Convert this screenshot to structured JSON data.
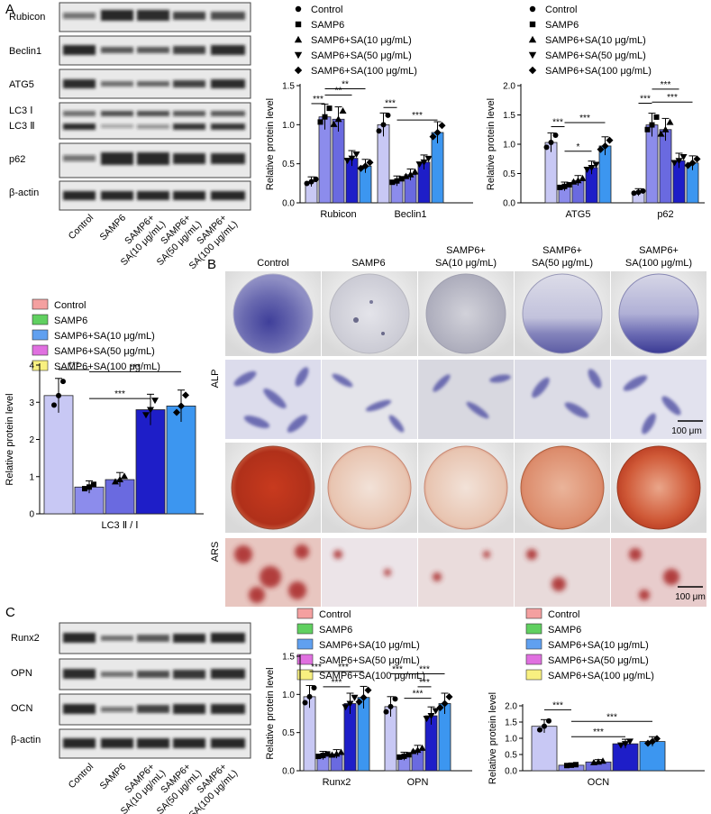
{
  "panel_labels": {
    "a": "A",
    "b": "B",
    "c": "C"
  },
  "colors": {
    "s0": "#c8c8f4",
    "s1": "#8c8cec",
    "s2": "#6a6ae0",
    "s3": "#1e1ec8",
    "s4": "#3c96f0",
    "leg_control": "#f4a0a0",
    "leg_samp6": "#60d060",
    "leg_sa10": "#60a0f0",
    "leg_sa50": "#e070e0",
    "leg_sa100": "#f8f080"
  },
  "legend_a": {
    "items": [
      {
        "label": "Control",
        "marker": "circle"
      },
      {
        "label": "SAMP6",
        "marker": "square"
      },
      {
        "label": "SAMP6+SA(10 μg/mL)",
        "marker": "triangle-up"
      },
      {
        "label": "SAMP6+SA(50 μg/mL)",
        "marker": "triangle-down"
      },
      {
        "label": "SAMP6+SA(100 μg/mL)",
        "marker": "diamond"
      }
    ]
  },
  "legend_boxes": {
    "items": [
      "Control",
      "SAMP6",
      "SAMP6+SA(10 μg/mL)",
      "SAMP6+SA(50 μg/mL)",
      "SAMP6+SA(100 μg/mL)"
    ]
  },
  "blot_a": {
    "rows": [
      "Rubicon",
      "Beclin1",
      "ATG5",
      "LC3 Ⅰ",
      "LC3 Ⅱ",
      "p62",
      "β-actin"
    ],
    "lanes": [
      "Control",
      "SAMP6",
      "SAMP6+",
      "SA(10 μg/mL)",
      "SAMP6+",
      "SA(50 μg/mL)",
      "SAMP6+",
      "SA(100 μg/mL)"
    ]
  },
  "blot_c": {
    "rows": [
      "Runx2",
      "OPN",
      "OCN",
      "β-actin"
    ],
    "lanes": [
      "Control",
      "SAMP6",
      "SAMP6+",
      "SA(10 μg/mL)",
      "SAMP6+",
      "SA(50 μg/mL)",
      "SAMP6+",
      "SA(100 μg/mL)"
    ]
  },
  "stain_panel": {
    "columns": [
      "Control",
      "SAMP6",
      "SAMP6+",
      "SA(10 μg/mL)",
      "SAMP6+",
      "SA(50 μg/mL)",
      "SAMP6+",
      "SA(100 μg/mL)"
    ],
    "rows": [
      "ALP",
      "ARS"
    ],
    "scale_bar": "100 μm"
  },
  "chart_data": [
    {
      "type": "bar",
      "ylabel": "Relative protein level",
      "ylim": [
        0,
        1.5
      ],
      "yticks": [
        "0.0",
        "0.5",
        "1.0",
        "1.5"
      ],
      "categories": [
        "Rubicon",
        "Beclin1"
      ],
      "series": [
        {
          "name": "Control",
          "values": [
            0.27,
            1.0
          ]
        },
        {
          "name": "SAMP6",
          "values": [
            1.1,
            0.28
          ]
        },
        {
          "name": "SAMP6+SA(10 μg/mL)",
          "values": [
            1.07,
            0.36
          ]
        },
        {
          "name": "SAMP6+SA(50 μg/mL)",
          "values": [
            0.57,
            0.52
          ]
        },
        {
          "name": "SAMP6+SA(100 μg/mL)",
          "values": [
            0.47,
            0.9
          ]
        }
      ],
      "significance": [
        "***",
        "**",
        "**",
        "***",
        "***"
      ]
    },
    {
      "type": "bar",
      "ylabel": "Relative protein level",
      "ylim": [
        0,
        2.0
      ],
      "yticks": [
        "0.0",
        "0.5",
        "1.0",
        "1.5",
        "2.0"
      ],
      "categories": [
        "ATG5",
        "p62"
      ],
      "series": [
        {
          "name": "Control",
          "values": [
            1.03,
            0.18
          ]
        },
        {
          "name": "SAMP6",
          "values": [
            0.28,
            1.33
          ]
        },
        {
          "name": "SAMP6+SA(10 μg/mL)",
          "values": [
            0.38,
            1.25
          ]
        },
        {
          "name": "SAMP6+SA(50 μg/mL)",
          "values": [
            0.6,
            0.72
          ]
        },
        {
          "name": "SAMP6+SA(100 μg/mL)",
          "values": [
            0.97,
            0.68
          ]
        }
      ],
      "significance": [
        "***",
        "***",
        "*",
        "***",
        "***",
        "***"
      ]
    },
    {
      "type": "bar",
      "ylabel": "Relative protein level",
      "xlabel": "LC3 Ⅱ / Ⅰ",
      "ylim": [
        0,
        4
      ],
      "yticks": [
        "0",
        "1",
        "2",
        "3",
        "4"
      ],
      "categories": [
        "LC3 Ⅱ / Ⅰ"
      ],
      "series": [
        {
          "name": "Control",
          "values": [
            3.18
          ]
        },
        {
          "name": "SAMP6",
          "values": [
            0.72
          ]
        },
        {
          "name": "SAMP6+SA(10 μg/mL)",
          "values": [
            0.92
          ]
        },
        {
          "name": "SAMP6+SA(50 μg/mL)",
          "values": [
            2.8
          ]
        },
        {
          "name": "SAMP6+SA(100 μg/mL)",
          "values": [
            2.9
          ]
        }
      ],
      "significance": [
        "***",
        "***",
        "***"
      ]
    },
    {
      "type": "bar",
      "ylabel": "Relative protein level",
      "ylim": [
        0,
        1.5
      ],
      "yticks": [
        "0.0",
        "0.5",
        "1.0",
        "1.5"
      ],
      "categories": [
        "Runx2",
        "OPN"
      ],
      "series": [
        {
          "name": "Control",
          "values": [
            0.97,
            0.84
          ]
        },
        {
          "name": "SAMP6",
          "values": [
            0.2,
            0.19
          ]
        },
        {
          "name": "SAMP6+SA(10 μg/mL)",
          "values": [
            0.22,
            0.27
          ]
        },
        {
          "name": "SAMP6+SA(50 μg/mL)",
          "values": [
            0.88,
            0.72
          ]
        },
        {
          "name": "SAMP6+SA(100 μg/mL)",
          "values": [
            0.96,
            0.88
          ]
        }
      ],
      "significance": [
        "***",
        "***",
        "***",
        "***",
        "***",
        "***",
        "***"
      ]
    },
    {
      "type": "bar",
      "ylabel": "Relative protein level",
      "ylim": [
        0,
        2.0
      ],
      "yticks": [
        "0.0",
        "0.5",
        "1.0",
        "1.5",
        "2.0"
      ],
      "categories": [
        "OCN"
      ],
      "series": [
        {
          "name": "Control",
          "values": [
            1.37
          ]
        },
        {
          "name": "SAMP6",
          "values": [
            0.17
          ]
        },
        {
          "name": "SAMP6+SA(10 μg/mL)",
          "values": [
            0.27
          ]
        },
        {
          "name": "SAMP6+SA(50 μg/mL)",
          "values": [
            0.83
          ]
        },
        {
          "name": "SAMP6+SA(100 μg/mL)",
          "values": [
            0.9
          ]
        }
      ],
      "significance": [
        "***",
        "***",
        "***"
      ]
    }
  ]
}
